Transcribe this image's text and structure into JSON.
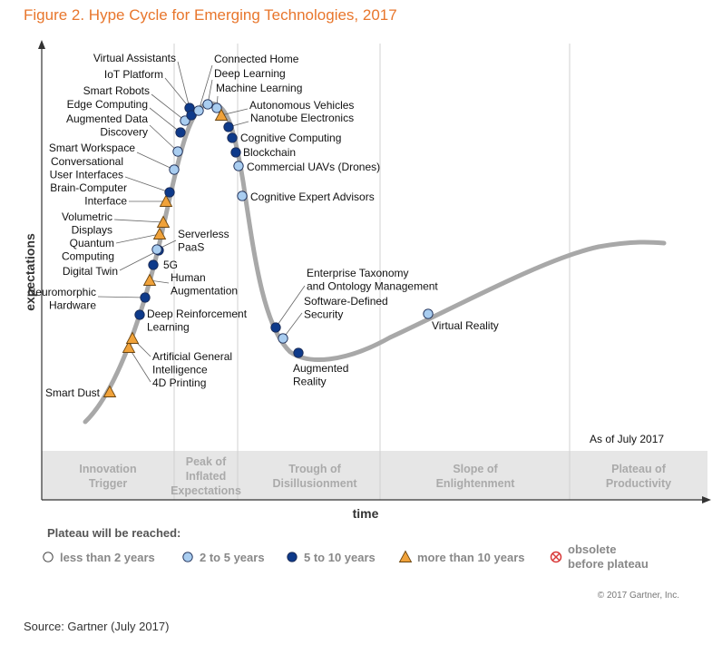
{
  "figure": {
    "title": "Figure 2. Hype Cycle for Emerging Technologies, 2017",
    "source": "Source: Gartner (July 2017)"
  },
  "chart_data": {
    "type": "scatter",
    "title": "Figure 2. Hype Cycle for Emerging Technologies, 2017",
    "xlabel": "time",
    "ylabel": "expectations",
    "as_of": "As of July 2017",
    "copyright": "© 2017 Gartner, Inc.",
    "phases": [
      [
        "Innovation",
        "Trigger"
      ],
      [
        "Peak of",
        "Inflated",
        "Expectations"
      ],
      [
        "Trough of",
        "Disillusionment"
      ],
      [
        "Slope of",
        "Enlightenment"
      ],
      [
        "Plateau of",
        "Productivity"
      ]
    ],
    "legend": {
      "title": "Plateau will be reached:",
      "items": [
        {
          "key": "lt2",
          "label": "less than 2 years",
          "color": "#ffffff"
        },
        {
          "key": "2to5",
          "label": "2 to 5 years",
          "color": "#a9cdf0"
        },
        {
          "key": "5to10",
          "label": "5 to 10 years",
          "color": "#0e3a8a"
        },
        {
          "key": "gt10",
          "label": "more than 10 years",
          "color": "#f0a23a"
        },
        {
          "key": "obsolete",
          "label": [
            "obsolete",
            "before plateau"
          ],
          "color": "#d93a3a"
        }
      ]
    },
    "technologies": [
      {
        "name": [
          "Smart Dust"
        ],
        "class": "gt10"
      },
      {
        "name": [
          "4D Printing"
        ],
        "class": "gt10"
      },
      {
        "name": [
          "Artificial General",
          "Intelligence"
        ],
        "class": "gt10"
      },
      {
        "name": [
          "Deep Reinforcement",
          "Learning"
        ],
        "class": "5to10"
      },
      {
        "name": [
          "Neuromorphic",
          "Hardware"
        ],
        "class": "5to10"
      },
      {
        "name": [
          "Human",
          "Augmentation"
        ],
        "class": "gt10"
      },
      {
        "name": [
          "5G"
        ],
        "class": "5to10"
      },
      {
        "name": [
          "Digital Twin"
        ],
        "class": "5to10"
      },
      {
        "name": [
          "Serverless",
          "PaaS"
        ],
        "class": "2to5"
      },
      {
        "name": [
          "Quantum",
          "Computing"
        ],
        "class": "gt10"
      },
      {
        "name": [
          "Volumetric",
          "Displays"
        ],
        "class": "gt10"
      },
      {
        "name": [
          "Brain-Computer",
          "Interface"
        ],
        "class": "gt10"
      },
      {
        "name": [
          "Conversational",
          "User Interfaces"
        ],
        "class": "5to10"
      },
      {
        "name": [
          "Smart Workspace"
        ],
        "class": "2to5"
      },
      {
        "name": [
          "Augmented Data",
          "Discovery"
        ],
        "class": "2to5"
      },
      {
        "name": [
          "Edge Computing"
        ],
        "class": "5to10"
      },
      {
        "name": [
          "Smart Robots"
        ],
        "class": "2to5"
      },
      {
        "name": [
          "IoT Platform"
        ],
        "class": "5to10"
      },
      {
        "name": [
          "Virtual Assistants"
        ],
        "class": "5to10"
      },
      {
        "name": [
          "Connected Home"
        ],
        "class": "2to5"
      },
      {
        "name": [
          "Deep Learning"
        ],
        "class": "2to5"
      },
      {
        "name": [
          "Machine Learning"
        ],
        "class": "2to5"
      },
      {
        "name": [
          "Autonomous Vehicles"
        ],
        "class": "gt10"
      },
      {
        "name": [
          "Nanotube Electronics"
        ],
        "class": "5to10"
      },
      {
        "name": [
          "Cognitive Computing"
        ],
        "class": "5to10"
      },
      {
        "name": [
          "Blockchain"
        ],
        "class": "5to10"
      },
      {
        "name": [
          "Commercial UAVs (Drones)"
        ],
        "class": "2to5"
      },
      {
        "name": [
          "Cognitive Expert Advisors"
        ],
        "class": "2to5"
      },
      {
        "name": [
          "Enterprise Taxonomy",
          "and Ontology Management"
        ],
        "class": "5to10"
      },
      {
        "name": [
          "Software-Defined",
          "Security"
        ],
        "class": "2to5"
      },
      {
        "name": [
          "Augmented",
          "Reality"
        ],
        "class": "5to10"
      },
      {
        "name": [
          "Virtual Reality"
        ],
        "class": "2to5"
      }
    ]
  }
}
